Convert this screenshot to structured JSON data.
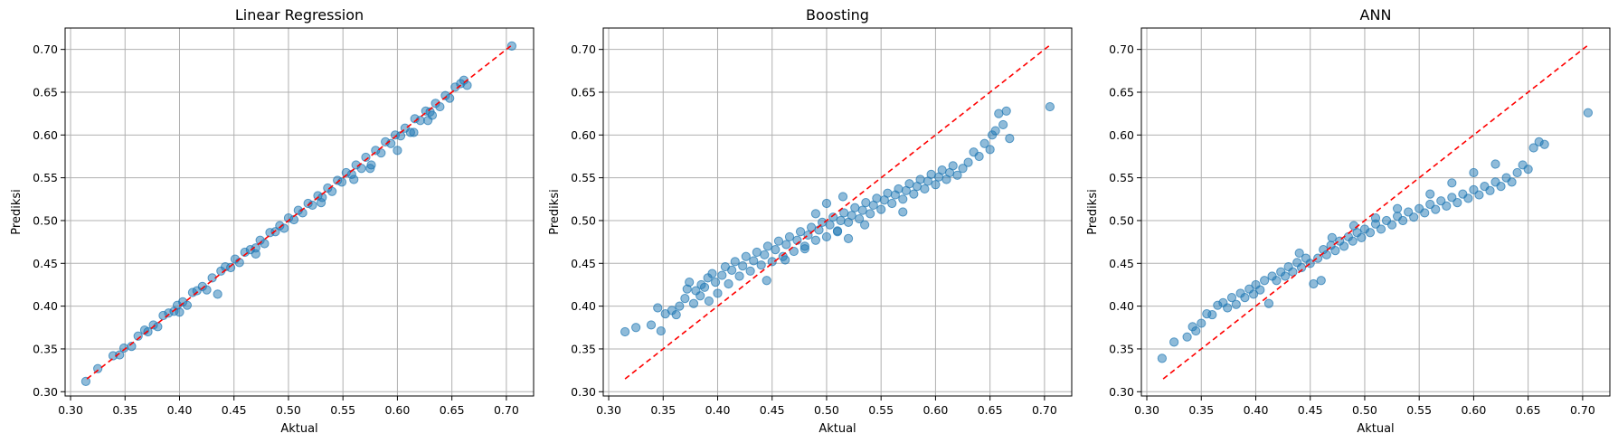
{
  "figure": {
    "background": "#ffffff"
  },
  "chart_data": [
    {
      "type": "scatter",
      "title": "Linear Regression",
      "xlabel": "Aktual",
      "ylabel": "Prediksi",
      "xlim": [
        0.295,
        0.725
      ],
      "ylim": [
        0.295,
        0.725
      ],
      "xticks": [
        "0.30",
        "0.35",
        "0.40",
        "0.45",
        "0.50",
        "0.55",
        "0.60",
        "0.65",
        "0.70"
      ],
      "yticks": [
        "0.30",
        "0.35",
        "0.40",
        "0.45",
        "0.50",
        "0.55",
        "0.60",
        "0.65",
        "0.70"
      ],
      "grid": true,
      "point_color": "#1f77b4",
      "reference_line": {
        "x": [
          0.315,
          0.705
        ],
        "y": [
          0.315,
          0.705
        ],
        "color": "#ff0000",
        "style": "dashed"
      },
      "points": [
        [
          0.314,
          0.312
        ],
        [
          0.325,
          0.327
        ],
        [
          0.339,
          0.342
        ],
        [
          0.345,
          0.343
        ],
        [
          0.349,
          0.351
        ],
        [
          0.356,
          0.353
        ],
        [
          0.362,
          0.365
        ],
        [
          0.368,
          0.372
        ],
        [
          0.371,
          0.37
        ],
        [
          0.376,
          0.378
        ],
        [
          0.38,
          0.376
        ],
        [
          0.385,
          0.389
        ],
        [
          0.39,
          0.392
        ],
        [
          0.395,
          0.394
        ],
        [
          0.398,
          0.401
        ],
        [
          0.403,
          0.405
        ],
        [
          0.407,
          0.401
        ],
        [
          0.412,
          0.416
        ],
        [
          0.416,
          0.418
        ],
        [
          0.421,
          0.423
        ],
        [
          0.425,
          0.419
        ],
        [
          0.43,
          0.433
        ],
        [
          0.435,
          0.414
        ],
        [
          0.438,
          0.441
        ],
        [
          0.442,
          0.446
        ],
        [
          0.447,
          0.445
        ],
        [
          0.451,
          0.455
        ],
        [
          0.455,
          0.451
        ],
        [
          0.46,
          0.463
        ],
        [
          0.465,
          0.466
        ],
        [
          0.47,
          0.468
        ],
        [
          0.474,
          0.477
        ],
        [
          0.478,
          0.473
        ],
        [
          0.483,
          0.486
        ],
        [
          0.488,
          0.487
        ],
        [
          0.492,
          0.494
        ],
        [
          0.496,
          0.491
        ],
        [
          0.5,
          0.503
        ],
        [
          0.505,
          0.501
        ],
        [
          0.509,
          0.512
        ],
        [
          0.513,
          0.509
        ],
        [
          0.518,
          0.52
        ],
        [
          0.522,
          0.518
        ],
        [
          0.527,
          0.529
        ],
        [
          0.531,
          0.527
        ],
        [
          0.536,
          0.538
        ],
        [
          0.54,
          0.534
        ],
        [
          0.545,
          0.547
        ],
        [
          0.549,
          0.545
        ],
        [
          0.553,
          0.556
        ],
        [
          0.558,
          0.554
        ],
        [
          0.562,
          0.565
        ],
        [
          0.567,
          0.561
        ],
        [
          0.571,
          0.574
        ],
        [
          0.576,
          0.565
        ],
        [
          0.58,
          0.582
        ],
        [
          0.585,
          0.579
        ],
        [
          0.589,
          0.592
        ],
        [
          0.594,
          0.59
        ],
        [
          0.598,
          0.6
        ],
        [
          0.603,
          0.599
        ],
        [
          0.607,
          0.608
        ],
        [
          0.612,
          0.603
        ],
        [
          0.616,
          0.619
        ],
        [
          0.621,
          0.617
        ],
        [
          0.626,
          0.628
        ],
        [
          0.63,
          0.627
        ],
        [
          0.635,
          0.637
        ],
        [
          0.639,
          0.633
        ],
        [
          0.644,
          0.646
        ],
        [
          0.648,
          0.643
        ],
        [
          0.653,
          0.656
        ],
        [
          0.658,
          0.66
        ],
        [
          0.661,
          0.664
        ],
        [
          0.664,
          0.658
        ],
        [
          0.705,
          0.704
        ],
        [
          0.6,
          0.582
        ],
        [
          0.615,
          0.603
        ],
        [
          0.628,
          0.617
        ],
        [
          0.632,
          0.623
        ],
        [
          0.575,
          0.561
        ],
        [
          0.56,
          0.548
        ],
        [
          0.53,
          0.521
        ],
        [
          0.47,
          0.461
        ],
        [
          0.4,
          0.393
        ]
      ]
    },
    {
      "type": "scatter",
      "title": "Boosting",
      "xlabel": "Aktual",
      "ylabel": "Prediksi",
      "xlim": [
        0.295,
        0.725
      ],
      "ylim": [
        0.295,
        0.725
      ],
      "xticks": [
        "0.30",
        "0.35",
        "0.40",
        "0.45",
        "0.50",
        "0.55",
        "0.60",
        "0.65",
        "0.70"
      ],
      "yticks": [
        "0.30",
        "0.35",
        "0.40",
        "0.45",
        "0.50",
        "0.55",
        "0.60",
        "0.65",
        "0.70"
      ],
      "grid": true,
      "point_color": "#1f77b4",
      "reference_line": {
        "x": [
          0.315,
          0.705
        ],
        "y": [
          0.315,
          0.705
        ],
        "color": "#ff0000",
        "style": "dashed"
      },
      "points": [
        [
          0.315,
          0.37
        ],
        [
          0.325,
          0.375
        ],
        [
          0.339,
          0.378
        ],
        [
          0.345,
          0.398
        ],
        [
          0.348,
          0.371
        ],
        [
          0.352,
          0.391
        ],
        [
          0.358,
          0.395
        ],
        [
          0.362,
          0.39
        ],
        [
          0.365,
          0.4
        ],
        [
          0.37,
          0.409
        ],
        [
          0.372,
          0.42
        ],
        [
          0.374,
          0.428
        ],
        [
          0.378,
          0.403
        ],
        [
          0.38,
          0.418
        ],
        [
          0.384,
          0.412
        ],
        [
          0.385,
          0.425
        ],
        [
          0.388,
          0.422
        ],
        [
          0.391,
          0.433
        ],
        [
          0.392,
          0.406
        ],
        [
          0.395,
          0.438
        ],
        [
          0.398,
          0.428
        ],
        [
          0.4,
          0.415
        ],
        [
          0.404,
          0.436
        ],
        [
          0.407,
          0.446
        ],
        [
          0.41,
          0.426
        ],
        [
          0.413,
          0.442
        ],
        [
          0.416,
          0.452
        ],
        [
          0.42,
          0.435
        ],
        [
          0.423,
          0.447
        ],
        [
          0.426,
          0.458
        ],
        [
          0.43,
          0.441
        ],
        [
          0.433,
          0.453
        ],
        [
          0.436,
          0.463
        ],
        [
          0.44,
          0.448
        ],
        [
          0.443,
          0.46
        ],
        [
          0.446,
          0.47
        ],
        [
          0.45,
          0.452
        ],
        [
          0.453,
          0.466
        ],
        [
          0.456,
          0.476
        ],
        [
          0.46,
          0.458
        ],
        [
          0.463,
          0.472
        ],
        [
          0.466,
          0.481
        ],
        [
          0.47,
          0.464
        ],
        [
          0.473,
          0.477
        ],
        [
          0.476,
          0.487
        ],
        [
          0.48,
          0.47
        ],
        [
          0.483,
          0.483
        ],
        [
          0.486,
          0.492
        ],
        [
          0.49,
          0.477
        ],
        [
          0.493,
          0.489
        ],
        [
          0.496,
          0.498
        ],
        [
          0.5,
          0.481
        ],
        [
          0.503,
          0.495
        ],
        [
          0.506,
          0.504
        ],
        [
          0.51,
          0.487
        ],
        [
          0.513,
          0.5
        ],
        [
          0.516,
          0.509
        ],
        [
          0.52,
          0.498
        ],
        [
          0.523,
          0.506
        ],
        [
          0.526,
          0.515
        ],
        [
          0.53,
          0.502
        ],
        [
          0.533,
          0.512
        ],
        [
          0.536,
          0.521
        ],
        [
          0.54,
          0.508
        ],
        [
          0.543,
          0.518
        ],
        [
          0.546,
          0.526
        ],
        [
          0.55,
          0.513
        ],
        [
          0.553,
          0.524
        ],
        [
          0.556,
          0.532
        ],
        [
          0.56,
          0.52
        ],
        [
          0.563,
          0.53
        ],
        [
          0.566,
          0.537
        ],
        [
          0.57,
          0.525
        ],
        [
          0.573,
          0.535
        ],
        [
          0.576,
          0.543
        ],
        [
          0.58,
          0.531
        ],
        [
          0.583,
          0.54
        ],
        [
          0.586,
          0.548
        ],
        [
          0.59,
          0.537
        ],
        [
          0.593,
          0.546
        ],
        [
          0.596,
          0.554
        ],
        [
          0.6,
          0.542
        ],
        [
          0.603,
          0.551
        ],
        [
          0.606,
          0.559
        ],
        [
          0.61,
          0.548
        ],
        [
          0.613,
          0.556
        ],
        [
          0.616,
          0.564
        ],
        [
          0.62,
          0.553
        ],
        [
          0.625,
          0.561
        ],
        [
          0.63,
          0.568
        ],
        [
          0.635,
          0.58
        ],
        [
          0.64,
          0.575
        ],
        [
          0.645,
          0.59
        ],
        [
          0.65,
          0.583
        ],
        [
          0.652,
          0.6
        ],
        [
          0.655,
          0.605
        ],
        [
          0.658,
          0.625
        ],
        [
          0.662,
          0.612
        ],
        [
          0.665,
          0.628
        ],
        [
          0.668,
          0.596
        ],
        [
          0.705,
          0.633
        ],
        [
          0.51,
          0.488
        ],
        [
          0.52,
          0.479
        ],
        [
          0.48,
          0.467
        ],
        [
          0.462,
          0.454
        ],
        [
          0.445,
          0.43
        ],
        [
          0.57,
          0.51
        ],
        [
          0.535,
          0.495
        ],
        [
          0.5,
          0.52
        ],
        [
          0.515,
          0.528
        ],
        [
          0.49,
          0.508
        ]
      ]
    },
    {
      "type": "scatter",
      "title": "ANN",
      "xlabel": "Aktual",
      "ylabel": "Prediksi",
      "xlim": [
        0.295,
        0.725
      ],
      "ylim": [
        0.295,
        0.725
      ],
      "xticks": [
        "0.30",
        "0.35",
        "0.40",
        "0.45",
        "0.50",
        "0.55",
        "0.60",
        "0.65",
        "0.70"
      ],
      "yticks": [
        "0.30",
        "0.35",
        "0.40",
        "0.45",
        "0.50",
        "0.55",
        "0.60",
        "0.65",
        "0.70"
      ],
      "grid": true,
      "point_color": "#1f77b4",
      "reference_line": {
        "x": [
          0.315,
          0.705
        ],
        "y": [
          0.315,
          0.705
        ],
        "color": "#ff0000",
        "style": "dashed"
      },
      "points": [
        [
          0.314,
          0.339
        ],
        [
          0.325,
          0.358
        ],
        [
          0.337,
          0.364
        ],
        [
          0.342,
          0.376
        ],
        [
          0.345,
          0.371
        ],
        [
          0.35,
          0.38
        ],
        [
          0.355,
          0.391
        ],
        [
          0.36,
          0.39
        ],
        [
          0.365,
          0.401
        ],
        [
          0.37,
          0.404
        ],
        [
          0.374,
          0.398
        ],
        [
          0.378,
          0.41
        ],
        [
          0.382,
          0.402
        ],
        [
          0.386,
          0.415
        ],
        [
          0.39,
          0.41
        ],
        [
          0.394,
          0.42
        ],
        [
          0.398,
          0.414
        ],
        [
          0.4,
          0.425
        ],
        [
          0.404,
          0.419
        ],
        [
          0.408,
          0.43
        ],
        [
          0.412,
          0.403
        ],
        [
          0.415,
          0.435
        ],
        [
          0.419,
          0.43
        ],
        [
          0.423,
          0.44
        ],
        [
          0.427,
          0.435
        ],
        [
          0.43,
          0.446
        ],
        [
          0.434,
          0.44
        ],
        [
          0.438,
          0.451
        ],
        [
          0.442,
          0.445
        ],
        [
          0.446,
          0.456
        ],
        [
          0.45,
          0.45
        ],
        [
          0.453,
          0.426
        ],
        [
          0.457,
          0.456
        ],
        [
          0.46,
          0.43
        ],
        [
          0.462,
          0.466
        ],
        [
          0.465,
          0.46
        ],
        [
          0.469,
          0.471
        ],
        [
          0.473,
          0.465
        ],
        [
          0.477,
          0.476
        ],
        [
          0.481,
          0.47
        ],
        [
          0.485,
          0.481
        ],
        [
          0.489,
          0.476
        ],
        [
          0.493,
          0.486
        ],
        [
          0.497,
          0.48
        ],
        [
          0.5,
          0.49
        ],
        [
          0.505,
          0.486
        ],
        [
          0.51,
          0.496
        ],
        [
          0.515,
          0.49
        ],
        [
          0.52,
          0.5
        ],
        [
          0.525,
          0.495
        ],
        [
          0.53,
          0.505
        ],
        [
          0.535,
          0.5
        ],
        [
          0.54,
          0.51
        ],
        [
          0.545,
          0.504
        ],
        [
          0.55,
          0.514
        ],
        [
          0.555,
          0.509
        ],
        [
          0.56,
          0.519
        ],
        [
          0.565,
          0.513
        ],
        [
          0.57,
          0.523
        ],
        [
          0.575,
          0.517
        ],
        [
          0.58,
          0.527
        ],
        [
          0.585,
          0.521
        ],
        [
          0.59,
          0.531
        ],
        [
          0.595,
          0.526
        ],
        [
          0.6,
          0.536
        ],
        [
          0.605,
          0.53
        ],
        [
          0.61,
          0.54
        ],
        [
          0.615,
          0.535
        ],
        [
          0.62,
          0.545
        ],
        [
          0.625,
          0.54
        ],
        [
          0.63,
          0.55
        ],
        [
          0.635,
          0.545
        ],
        [
          0.64,
          0.556
        ],
        [
          0.645,
          0.565
        ],
        [
          0.65,
          0.56
        ],
        [
          0.655,
          0.585
        ],
        [
          0.66,
          0.592
        ],
        [
          0.665,
          0.589
        ],
        [
          0.705,
          0.626
        ],
        [
          0.62,
          0.566
        ],
        [
          0.6,
          0.556
        ],
        [
          0.58,
          0.544
        ],
        [
          0.56,
          0.531
        ],
        [
          0.53,
          0.514
        ],
        [
          0.47,
          0.48
        ],
        [
          0.44,
          0.462
        ],
        [
          0.51,
          0.503
        ],
        [
          0.49,
          0.494
        ]
      ]
    }
  ]
}
